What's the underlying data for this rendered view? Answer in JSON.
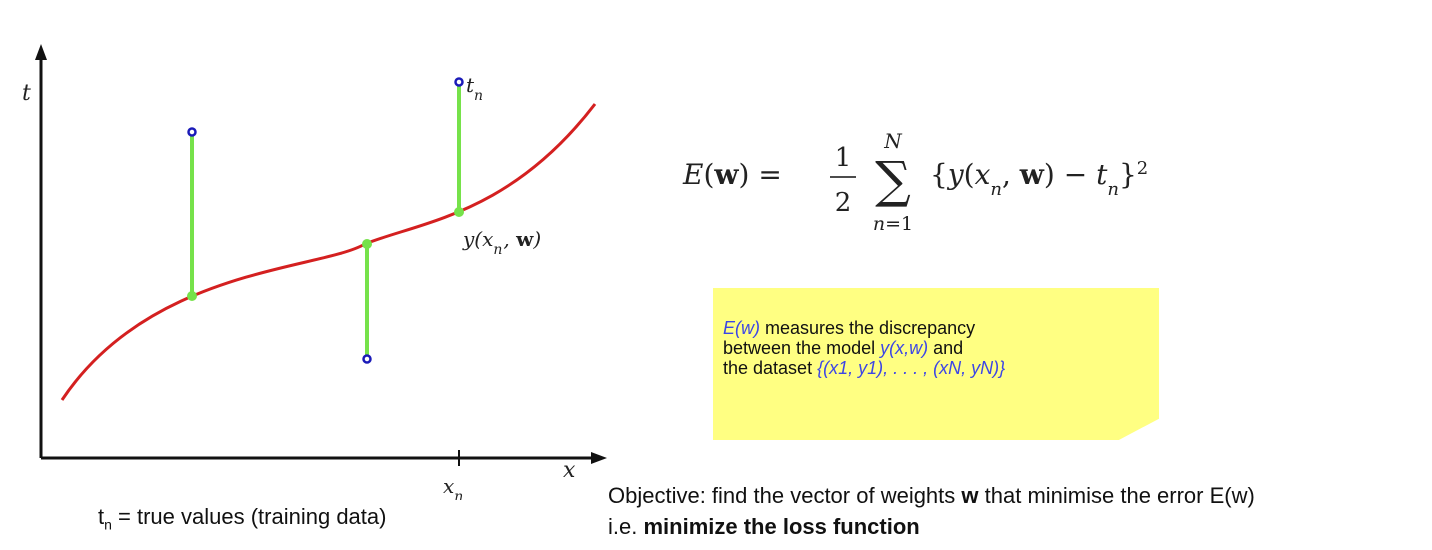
{
  "diagram": {
    "t_label": "t",
    "x_label": "x",
    "xn_label": "x_n",
    "tn_label": "t_n",
    "curve_label": "y(x_n, w)",
    "colors": {
      "curve": "#d42020",
      "residual": "#76e24a",
      "target_point": "#1a1ab8",
      "model_point": "#76e24a",
      "axis": "#111111"
    }
  },
  "caption": {
    "t": "t",
    "sub": "n",
    "rest": " = true values (training data)"
  },
  "formula": {
    "lhs": "E(w) =",
    "frac_num": "1",
    "frac_den": "2",
    "sum_upper": "N",
    "sum_lower": "n=1",
    "body": "{y(x_n, w) − t_n}²"
  },
  "note": {
    "l1_hl": "E(w)",
    "l1_rest": " measures the discrepancy",
    "l2_pre": "between the model ",
    "l2_hl": "y(x,w)",
    "l2_post": " and",
    "l3_pre": "the dataset ",
    "l3_hl": "{(x1, y1), . . . , (xN, yN)}"
  },
  "objective": {
    "l1_pre": "Objective: find the vector of weights ",
    "l1_bold": "w",
    "l1_post": " that minimise the error E(w)",
    "l2_pre": "i.e. ",
    "l2_bold": "minimize the loss function"
  }
}
